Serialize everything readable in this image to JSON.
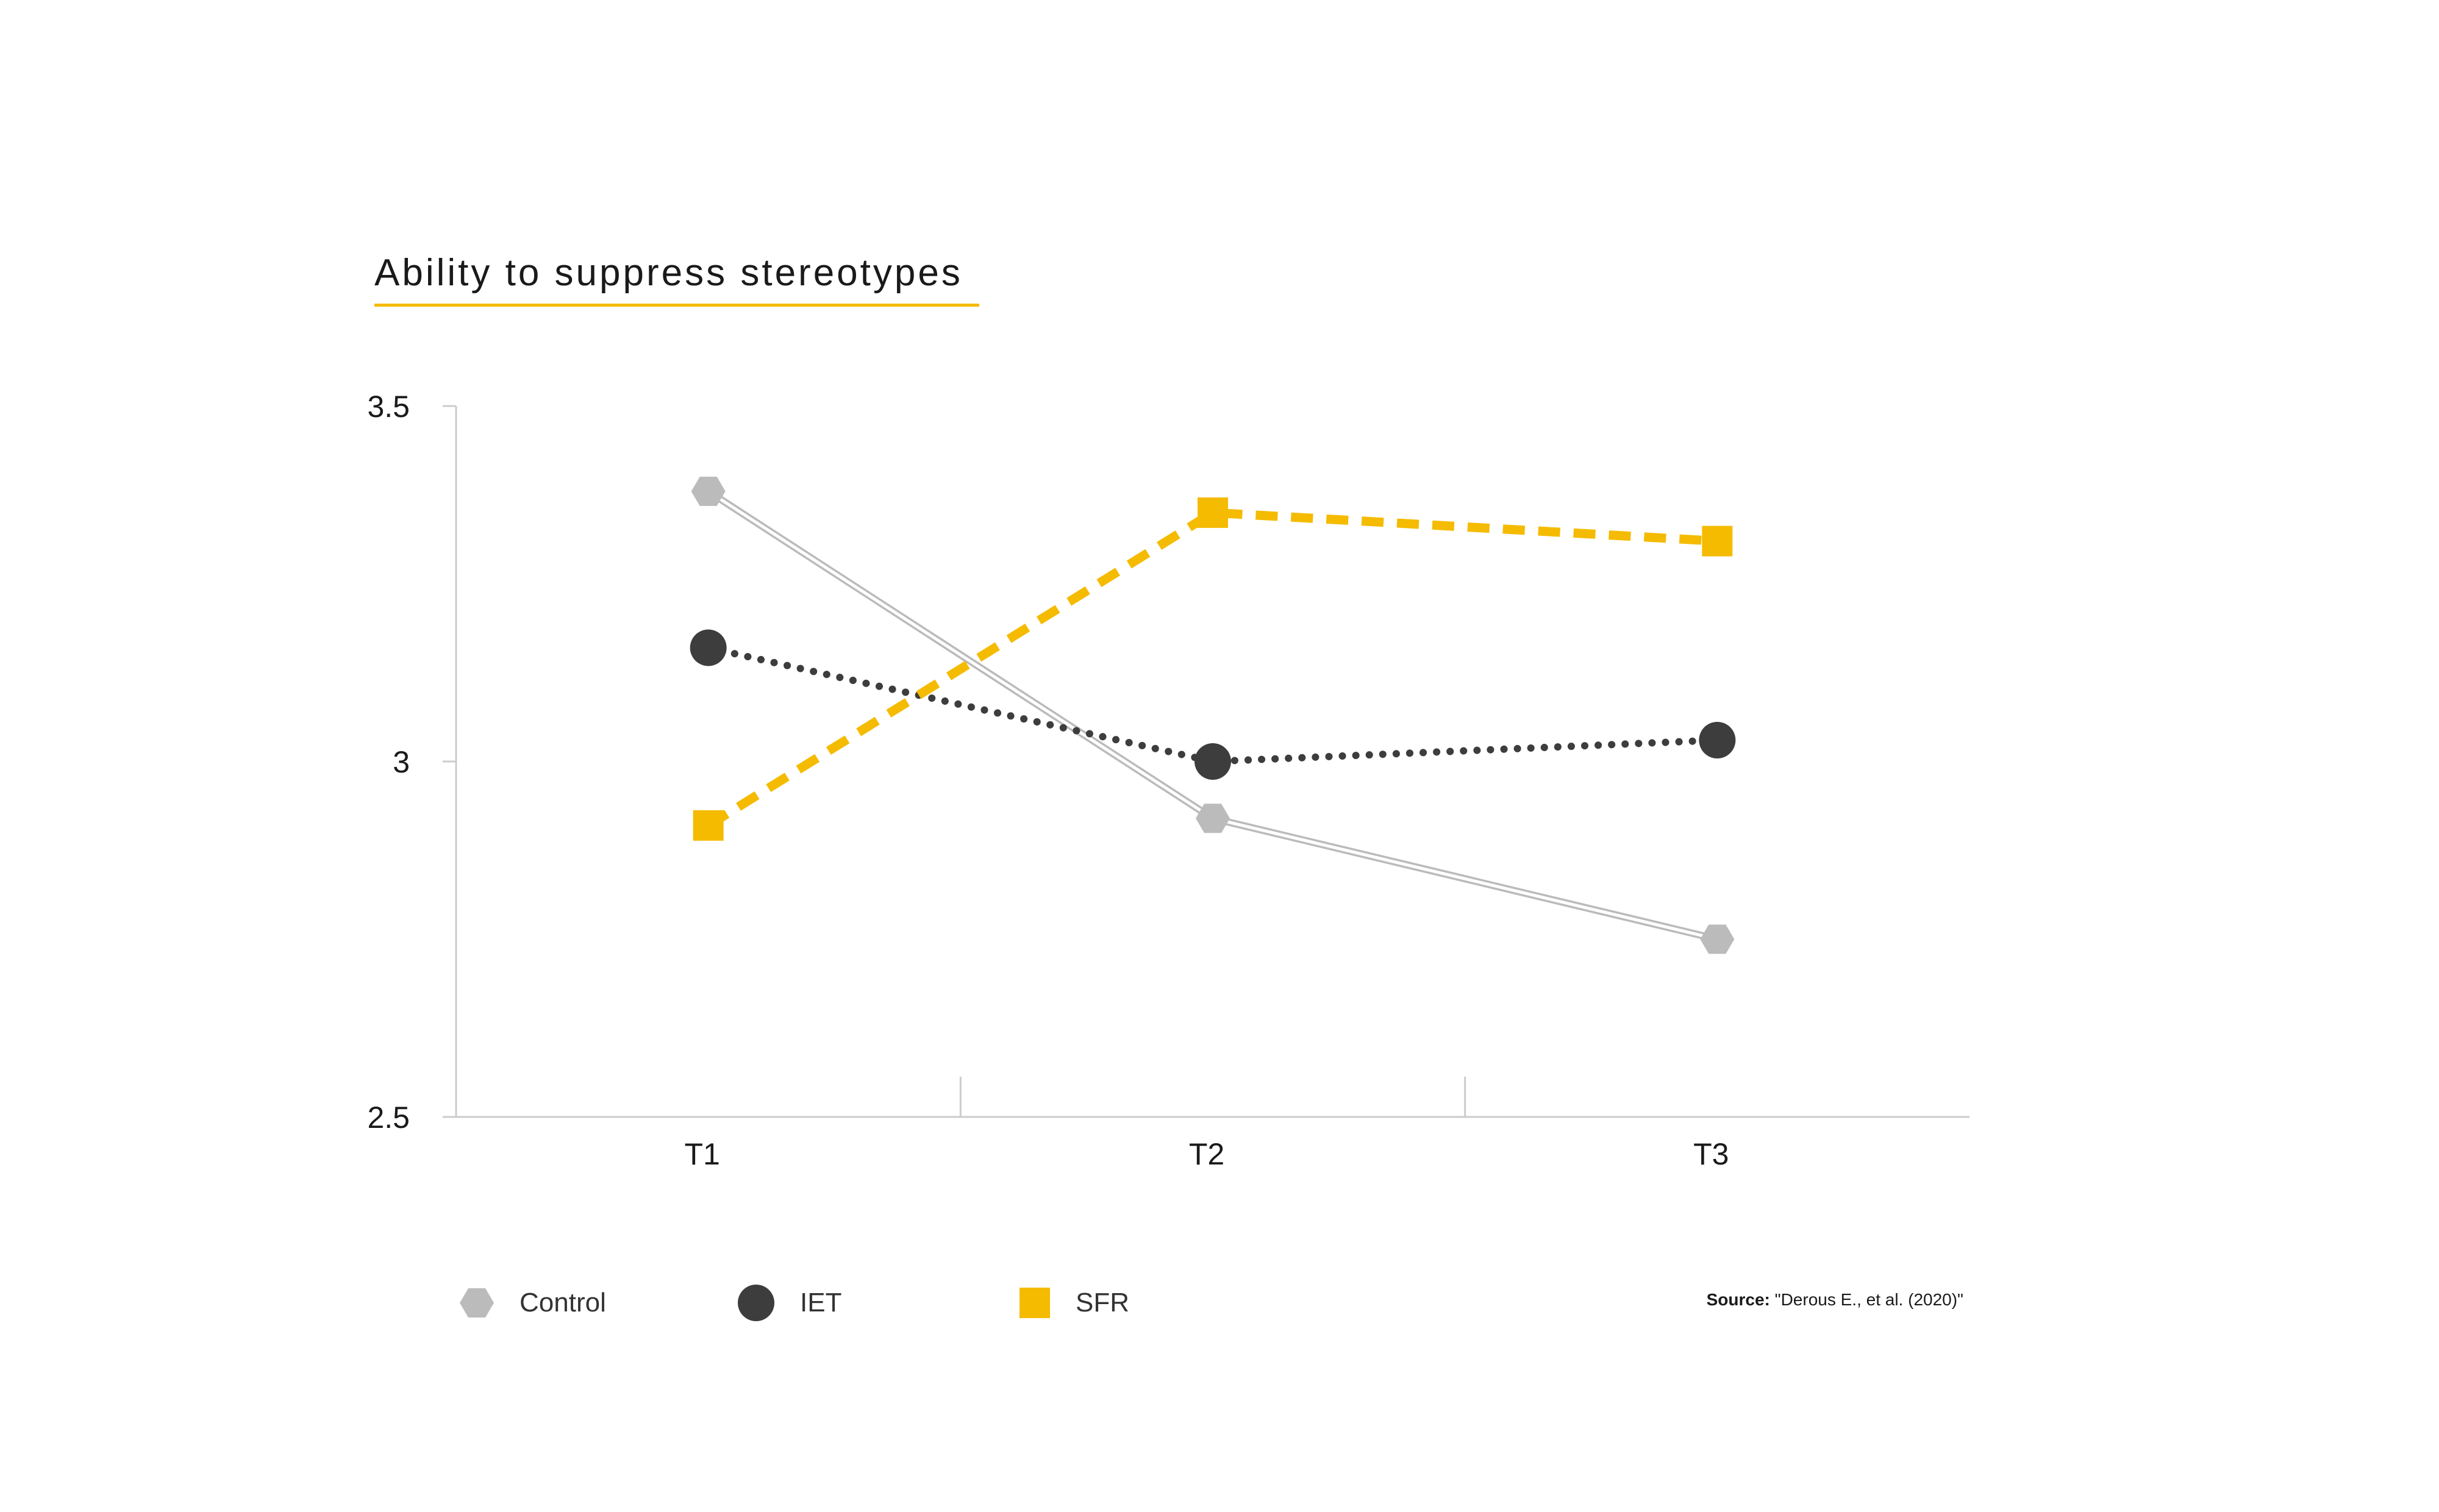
{
  "chart_data": {
    "type": "line",
    "title": "Ability to suppress stereotypes",
    "xlabel": "",
    "ylabel": "",
    "categories": [
      "T1",
      "T2",
      "T3"
    ],
    "ylim": [
      2.5,
      3.5
    ],
    "yticks": [
      "2.5",
      "3",
      "3.5"
    ],
    "grid": false,
    "legend_position": "bottom",
    "series": [
      {
        "name": "Control",
        "values": [
          3.38,
          2.92,
          2.75
        ],
        "color": "#bbbbbb",
        "marker": "hexagon",
        "line_style": "double-thin"
      },
      {
        "name": "IET",
        "values": [
          3.16,
          3.0,
          3.03
        ],
        "color": "#3d3d3d",
        "marker": "circle",
        "line_style": "dotted"
      },
      {
        "name": "SFR",
        "values": [
          2.91,
          3.35,
          3.31
        ],
        "color": "#f5bb00",
        "marker": "square",
        "line_style": "dashed"
      }
    ]
  },
  "title_underline_color": "#f5bb00",
  "legend": {
    "control": "Control",
    "iet": "IET",
    "sfr": "SFR"
  },
  "source": {
    "label": "Source:",
    "text": "\"Derous E., et al. (2020)\""
  }
}
